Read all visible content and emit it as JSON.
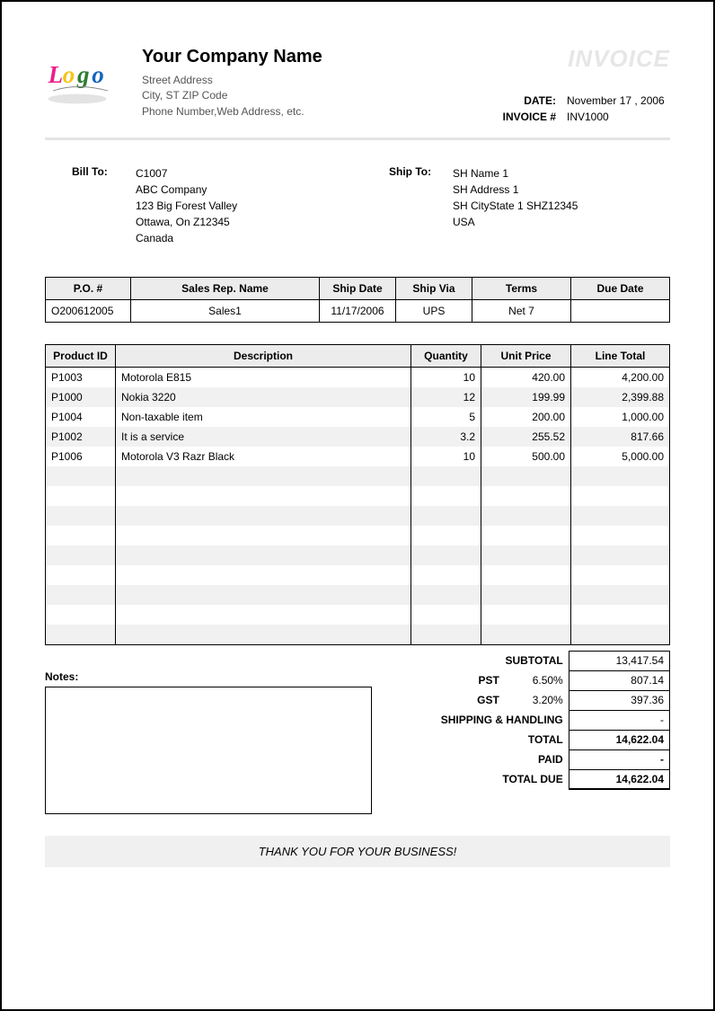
{
  "header": {
    "company_name": "Your Company Name",
    "street": "Street Address",
    "city_line": "City, ST  ZIP Code",
    "contact_line": "Phone Number,Web Address, etc.",
    "invoice_title": "INVOICE",
    "date_label": "DATE:",
    "date_value": "November 17 , 2006",
    "invno_label": "INVOICE #",
    "invno_value": "INV1000"
  },
  "bill_to": {
    "label": "Bill To:",
    "l1": "C1007",
    "l2": "ABC Company",
    "l3": "123 Big Forest Valley",
    "l4": "Ottawa, On Z12345",
    "l5": "Canada"
  },
  "ship_to": {
    "label": "Ship To:",
    "l1": "SH Name 1",
    "l2": "SH Address 1",
    "l3": "SH CityState 1 SHZ12345",
    "l4": "USA"
  },
  "order": {
    "headers": {
      "po": "P.O. #",
      "rep": "Sales Rep. Name",
      "shipdate": "Ship Date",
      "via": "Ship Via",
      "terms": "Terms",
      "due": "Due Date"
    },
    "po": "O200612005",
    "rep": "Sales1",
    "shipdate": "11/17/2006",
    "via": "UPS",
    "terms": "Net 7",
    "due": ""
  },
  "items": {
    "headers": {
      "id": "Product ID",
      "desc": "Description",
      "qty": "Quantity",
      "price": "Unit Price",
      "total": "Line Total"
    },
    "rows": [
      {
        "id": "P1003",
        "desc": "Motorola E815",
        "qty": "10",
        "price": "420.00",
        "total": "4,200.00"
      },
      {
        "id": "P1000",
        "desc": "Nokia 3220",
        "qty": "12",
        "price": "199.99",
        "total": "2,399.88"
      },
      {
        "id": "P1004",
        "desc": "Non-taxable  item",
        "qty": "5",
        "price": "200.00",
        "total": "1,000.00"
      },
      {
        "id": "P1002",
        "desc": "It is a service",
        "qty": "3.2",
        "price": "255.52",
        "total": "817.66"
      },
      {
        "id": "P1006",
        "desc": "Motorola V3 Razr Black",
        "qty": "10",
        "price": "500.00",
        "total": "5,000.00"
      }
    ],
    "blank_rows": 9,
    "stripe_color": "#f1f1f1"
  },
  "notes_label": "Notes:",
  "totals": {
    "subtotal_label": "SUBTOTAL",
    "subtotal": "13,417.54",
    "pst_label": "PST",
    "pst_pct": "6.50%",
    "pst": "807.14",
    "gst_label": "GST",
    "gst_pct": "3.20%",
    "gst": "397.36",
    "ship_label": "SHIPPING & HANDLING",
    "ship": "-",
    "total_label": "TOTAL",
    "total": "14,622.04",
    "paid_label": "PAID",
    "paid": "-",
    "due_label": "TOTAL DUE",
    "due": "14,622.04"
  },
  "thanks": "THANK YOU FOR YOUR BUSINESS!",
  "colors": {
    "header_grey": "#ececec",
    "stripe": "#f1f1f1",
    "divider": "#e4e4e4",
    "title_grey": "#e6e6e6"
  }
}
